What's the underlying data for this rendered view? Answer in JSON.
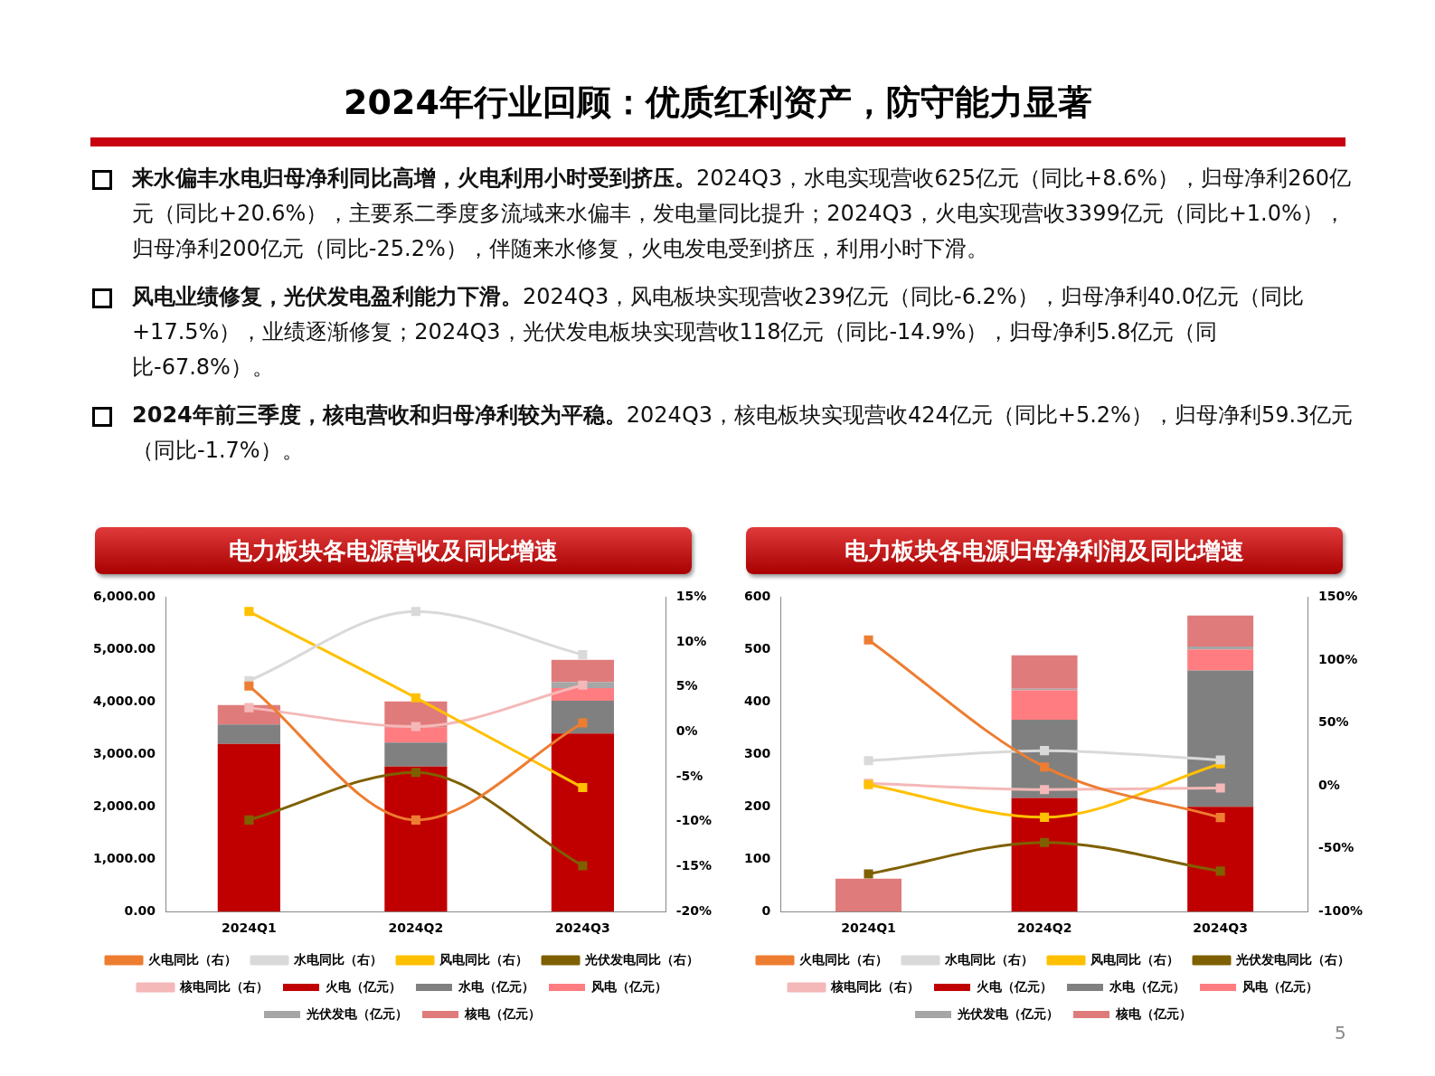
{
  "chart_data": [
    {
      "type": "other",
      "title": "2024年行业回顾：优质红利资产，防守能力显著",
      "annotations": [
        "来水偏丰水电归母净利同比高增，火电利用小时受到挤压。",
        "2024Q3，水电实现营收625亿元（同比+8.6%），归母净利260亿元（同比+20.6%），主要系二季度多流域来水偏丰，发电量同比提升；2024Q3，火电实现营收3399亿元（同比+1.0%），归母净利200亿元（同比-25.2%），伴随来水修复，火电发电受到挤压，利用小时下滑。",
        "风电业绩修复，光伏发电盈利能力下滑。",
        "2024Q3，风电板块实现营收239亿元（同比-6.2%），归母净利40.0亿元（同比+17.5%），业绩逐渐修复；2024Q3，光伏发电板块实现营收118亿元（同比-14.9%），归母净利5.8亿元（同比-67.8%）。",
        "2024年前三季度，核电营收和归母净利较为平稳。",
        "2024Q3，核电板块实现营收424亿元（同比+5.2%），归母净利59.3亿元（同比-1.7%）。",
        "5"
      ]
    },
    {
      "type": "bar",
      "title": "电力板块各电源营收及同比增速",
      "categories": [
        "2024Q1",
        "2024Q2",
        "2024Q3"
      ],
      "stacked": true,
      "grid": false,
      "legend": "bottom",
      "marker": "square",
      "line_style": "solid",
      "ylim": [
        0,
        6000
      ],
      "yticks": [
        {
          "value": 0,
          "label": "0.00"
        },
        {
          "value": 1000,
          "label": "1,000.00"
        },
        {
          "value": 2000,
          "label": "2,000.00"
        },
        {
          "value": 3000,
          "label": "3,000.00"
        },
        {
          "value": 4000,
          "label": "4,000.00"
        },
        {
          "value": 5000,
          "label": "5,000.00"
        },
        {
          "value": 6000,
          "label": "6,000.00"
        }
      ],
      "y2lim": [
        -20,
        15
      ],
      "y2ticks": [
        {
          "value": -20,
          "label": "-20%"
        },
        {
          "value": -15,
          "label": "-15%"
        },
        {
          "value": -10,
          "label": "-10%"
        },
        {
          "value": -5,
          "label": "-5%"
        },
        {
          "value": 0,
          "label": "0%"
        },
        {
          "value": 5,
          "label": "5%"
        },
        {
          "value": 10,
          "label": "10%"
        },
        {
          "value": 15,
          "label": "15%"
        }
      ],
      "series": [
        {
          "name": "火电（亿元）",
          "type": "bar",
          "color": "#c00000",
          "values": [
            3200,
            2770,
            3399
          ]
        },
        {
          "name": "水电（亿元）",
          "type": "bar",
          "color": "#808080",
          "values": [
            370,
            455,
            625
          ]
        },
        {
          "name": "风电（亿元）",
          "type": "bar",
          "color": "#ff7c80",
          "values": [
            0,
            283,
            239
          ]
        },
        {
          "name": "光伏发电（亿元）",
          "type": "bar",
          "color": "#a6a6a6",
          "values": [
            0,
            0,
            118
          ]
        },
        {
          "name": "核电（亿元）",
          "type": "bar",
          "color": "#e07b7b",
          "values": [
            370,
            504,
            424
          ]
        },
        {
          "name": "火电同比（右）",
          "type": "line",
          "axis": "y2",
          "color": "#ed7d31",
          "values": [
            5.1,
            -9.8,
            1.0
          ]
        },
        {
          "name": "水电同比（右）",
          "type": "line",
          "axis": "y2",
          "color": "#d9d9d9",
          "values": [
            5.7,
            13.4,
            8.6
          ]
        },
        {
          "name": "风电同比（右）",
          "type": "line",
          "axis": "y2",
          "color": "#ffc000",
          "values": [
            13.4,
            3.8,
            -6.2
          ]
        },
        {
          "name": "光伏发电同比（右）",
          "type": "line",
          "axis": "y2",
          "color": "#7f6000",
          "values": [
            -9.8,
            -4.5,
            -14.9
          ]
        },
        {
          "name": "核电同比（右）",
          "type": "line",
          "axis": "y2",
          "color": "#f4b8b8",
          "values": [
            2.7,
            0.6,
            5.2
          ]
        }
      ]
    },
    {
      "type": "bar",
      "title": "电力板块各电源归母净利润及同比增速",
      "categories": [
        "2024Q1",
        "2024Q2",
        "2024Q3"
      ],
      "stacked": true,
      "grid": false,
      "legend": "bottom",
      "marker": "square",
      "line_style": "solid",
      "ylim": [
        0,
        600
      ],
      "yticks": [
        0,
        100,
        200,
        300,
        400,
        500,
        600
      ],
      "y2lim": [
        -100,
        150
      ],
      "y2ticks": [
        {
          "value": -100,
          "label": "-100%"
        },
        {
          "value": -50,
          "label": "-50%"
        },
        {
          "value": 0,
          "label": "0%"
        },
        {
          "value": 50,
          "label": "50%"
        },
        {
          "value": 100,
          "label": "100%"
        },
        {
          "value": 150,
          "label": "150%"
        }
      ],
      "series": [
        {
          "name": "火电（亿元）",
          "type": "bar",
          "color": "#c00000",
          "values": [
            0,
            217,
            200
          ]
        },
        {
          "name": "水电（亿元）",
          "type": "bar",
          "color": "#808080",
          "values": [
            0,
            149,
            260
          ]
        },
        {
          "name": "风电（亿元）",
          "type": "bar",
          "color": "#ff7c80",
          "values": [
            0,
            56,
            40.0
          ]
        },
        {
          "name": "光伏发电（亿元）",
          "type": "bar",
          "color": "#a6a6a6",
          "values": [
            0,
            3,
            5.8
          ]
        },
        {
          "name": "核电（亿元）",
          "type": "bar",
          "color": "#e07b7b",
          "values": [
            63,
            64,
            59.3
          ]
        },
        {
          "name": "火电同比（右）",
          "type": "line",
          "axis": "y2",
          "color": "#ed7d31",
          "values": [
            116,
            15,
            -25.2
          ]
        },
        {
          "name": "水电同比（右）",
          "type": "line",
          "axis": "y2",
          "color": "#d9d9d9",
          "values": [
            20,
            28,
            20.6
          ]
        },
        {
          "name": "风电同比（右）",
          "type": "line",
          "axis": "y2",
          "color": "#ffc000",
          "values": [
            1,
            -25,
            17.5
          ]
        },
        {
          "name": "光伏发电同比（右）",
          "type": "line",
          "axis": "y2",
          "color": "#7f6000",
          "values": [
            -70,
            -45,
            -67.8
          ]
        },
        {
          "name": "核电同比（右）",
          "type": "line",
          "axis": "y2",
          "color": "#f4b8b8",
          "values": [
            2,
            -3,
            -1.7
          ]
        }
      ]
    }
  ]
}
